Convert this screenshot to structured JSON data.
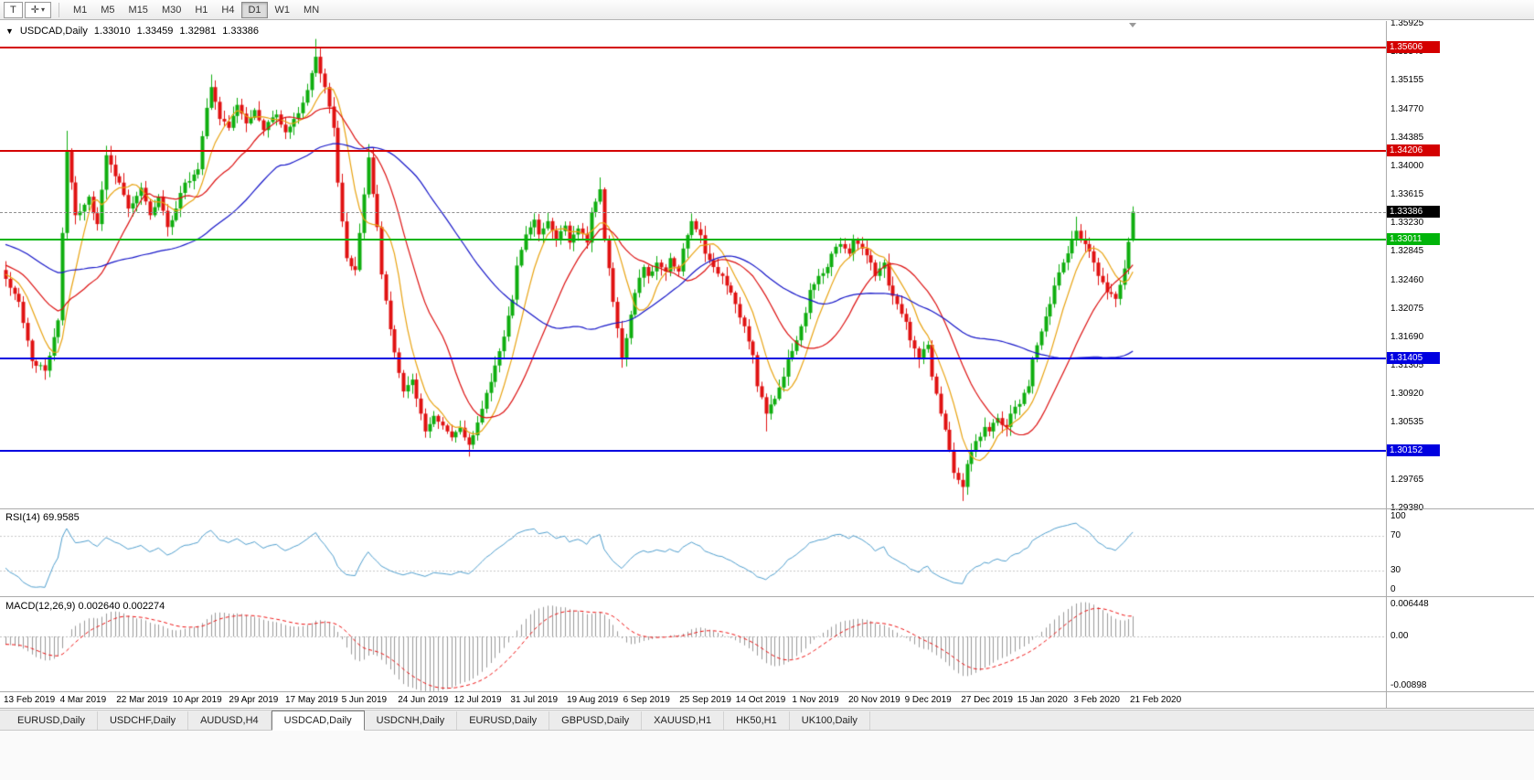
{
  "toolbar": {
    "text_tool_label": "T",
    "cursor_tool_label": "✛",
    "cursor_dropdown_icon": "▾",
    "timeframes": [
      "M1",
      "M5",
      "M15",
      "M30",
      "H1",
      "H4",
      "D1",
      "W1",
      "MN"
    ],
    "active_timeframe": "D1"
  },
  "chart_header": {
    "collapse_icon": "▼",
    "symbol": "USDCAD,Daily",
    "open": "1.33010",
    "high": "1.33459",
    "low": "1.32981",
    "close": "1.33386"
  },
  "price_axis_labels": [
    "1.35925",
    "1.35540",
    "1.35155",
    "1.34770",
    "1.34385",
    "1.34000",
    "1.33615",
    "1.33230",
    "1.32845",
    "1.32460",
    "1.32075",
    "1.31690",
    "1.31305",
    "1.30920",
    "1.30535",
    "1.30150",
    "1.29765",
    "1.29380"
  ],
  "price_markers": [
    {
      "name": "resistance-upper",
      "text": "1.35606",
      "price": 1.35606,
      "color": "#d40000",
      "line": "solid"
    },
    {
      "name": "resistance-lower",
      "text": "1.34206",
      "price": 1.34206,
      "color": "#d40000",
      "line": "solid"
    },
    {
      "name": "current-price",
      "text": "1.33386",
      "price": 1.33386,
      "color": "#000000",
      "line": "dashed"
    },
    {
      "name": "pivot-green",
      "text": "1.33011",
      "price": 1.33011,
      "color": "#00b40a",
      "line": "solid"
    },
    {
      "name": "support-upper",
      "text": "1.31405",
      "price": 1.31405,
      "color": "#0000e0",
      "line": "solid"
    },
    {
      "name": "support-lower",
      "text": "1.30152",
      "price": 1.30152,
      "color": "#0000e0",
      "line": "solid"
    }
  ],
  "rsi_panel": {
    "label": "RSI(14) 69.9585",
    "axis_labels": [
      "100",
      "70",
      "30",
      "0"
    ],
    "levels": [
      70,
      30
    ]
  },
  "macd_panel": {
    "label": "MACD(12,26,9) 0.002640 0.002274",
    "axis_top": "0.006448",
    "axis_zero": "0.00",
    "axis_bottom": "-0.00898"
  },
  "date_axis": [
    "13 Feb 2019",
    "4 Mar 2019",
    "22 Mar 2019",
    "10 Apr 2019",
    "29 Apr 2019",
    "17 May 2019",
    "5 Jun 2019",
    "24 Jun 2019",
    "12 Jul 2019",
    "31 Jul 2019",
    "19 Aug 2019",
    "6 Sep 2019",
    "25 Sep 2019",
    "14 Oct 2019",
    "1 Nov 2019",
    "20 Nov 2019",
    "9 Dec 2019",
    "27 Dec 2019",
    "15 Jan 2020",
    "3 Feb 2020",
    "21 Feb 2020"
  ],
  "tabs": [
    "EURUSD,Daily",
    "USDCHF,Daily",
    "AUDUSD,H4",
    "USDCAD,Daily",
    "USDCNH,Daily",
    "EURUSD,Daily",
    "GBPUSD,Daily",
    "XAUUSD,H1",
    "HK50,H1",
    "UK100,Daily"
  ],
  "active_tab_index": 3,
  "colors": {
    "candle_up": "#0fae0f",
    "candle_down": "#e01212",
    "level_red": "#d40000",
    "level_green": "#00b40a",
    "level_blue": "#0000e0",
    "rsi_line": "#4f9ecd",
    "macd_hist": "#9a9a9a",
    "macd_signal": "#ee1111",
    "bid_line": "#909090"
  },
  "chart_data": {
    "type": "candlestick",
    "symbol": "USDCAD",
    "timeframe": "Daily",
    "last_candle": {
      "open": 1.3301,
      "high": 1.33459,
      "low": 1.32981,
      "close": 1.33386
    },
    "price_range": {
      "top": 1.3595,
      "bottom": 1.2938
    },
    "candle_count": 259,
    "horizontal_levels": [
      1.35606,
      1.34206,
      1.33011,
      1.31405,
      1.30152
    ],
    "moving_averages": [
      {
        "name": "fast",
        "window": 8,
        "color": "#e8a312"
      },
      {
        "name": "medium",
        "window": 20,
        "color": "#dc1010"
      },
      {
        "name": "slow",
        "window": 50,
        "color": "#1616c8"
      }
    ],
    "rsi": {
      "period": 14,
      "value": 69.9585
    },
    "macd": {
      "fast": 12,
      "slow": 26,
      "signal": 9,
      "value": 0.00264,
      "signal_value": 0.002274,
      "scale_top": 0.006448,
      "scale_bottom": -0.00898
    },
    "close_anchors": [
      [
        0,
        1.3248
      ],
      [
        1,
        1.3236
      ],
      [
        3,
        1.3217
      ],
      [
        6,
        1.3137
      ],
      [
        9,
        1.3124
      ],
      [
        12,
        1.3192
      ],
      [
        13,
        1.331
      ],
      [
        14,
        1.3421
      ],
      [
        16,
        1.3334
      ],
      [
        19,
        1.3359
      ],
      [
        21,
        1.3322
      ],
      [
        23,
        1.3415
      ],
      [
        26,
        1.3378
      ],
      [
        28,
        1.3343
      ],
      [
        31,
        1.3371
      ],
      [
        33,
        1.3334
      ],
      [
        35,
        1.3359
      ],
      [
        37,
        1.3318
      ],
      [
        39,
        1.3343
      ],
      [
        41,
        1.3378
      ],
      [
        44,
        1.3396
      ],
      [
        46,
        1.3479
      ],
      [
        47,
        1.3507
      ],
      [
        49,
        1.3464
      ],
      [
        51,
        1.3452
      ],
      [
        53,
        1.3483
      ],
      [
        55,
        1.3458
      ],
      [
        57,
        1.3476
      ],
      [
        59,
        1.3449
      ],
      [
        62,
        1.347
      ],
      [
        64,
        1.3446
      ],
      [
        66,
        1.3464
      ],
      [
        68,
        1.3486
      ],
      [
        70,
        1.3526
      ],
      [
        71,
        1.3548
      ],
      [
        73,
        1.3507
      ],
      [
        75,
        1.3452
      ],
      [
        76,
        1.3378
      ],
      [
        78,
        1.3276
      ],
      [
        80,
        1.326
      ],
      [
        81,
        1.331
      ],
      [
        83,
        1.3412
      ],
      [
        85,
        1.3318
      ],
      [
        86,
        1.3254
      ],
      [
        88,
        1.318
      ],
      [
        90,
        1.3121
      ],
      [
        91,
        1.3096
      ],
      [
        93,
        1.3112
      ],
      [
        95,
        1.3066
      ],
      [
        96,
        1.3042
      ],
      [
        98,
        1.3063
      ],
      [
        100,
        1.305
      ],
      [
        102,
        1.3034
      ],
      [
        104,
        1.3047
      ],
      [
        106,
        1.3024
      ],
      [
        108,
        1.3054
      ],
      [
        110,
        1.3094
      ],
      [
        112,
        1.3131
      ],
      [
        114,
        1.317
      ],
      [
        116,
        1.322
      ],
      [
        117,
        1.3266
      ],
      [
        119,
        1.3308
      ],
      [
        121,
        1.3328
      ],
      [
        122,
        1.3308
      ],
      [
        124,
        1.3326
      ],
      [
        126,
        1.3301
      ],
      [
        128,
        1.332
      ],
      [
        129,
        1.3297
      ],
      [
        131,
        1.3316
      ],
      [
        133,
        1.3297
      ],
      [
        134,
        1.3338
      ],
      [
        136,
        1.3369
      ],
      [
        137,
        1.3301
      ],
      [
        139,
        1.3217
      ],
      [
        141,
        1.314
      ],
      [
        142,
        1.3168
      ],
      [
        144,
        1.3229
      ],
      [
        146,
        1.3264
      ],
      [
        147,
        1.3252
      ],
      [
        149,
        1.327
      ],
      [
        151,
        1.3258
      ],
      [
        152,
        1.3276
      ],
      [
        154,
        1.3258
      ],
      [
        155,
        1.3289
      ],
      [
        157,
        1.3326
      ],
      [
        159,
        1.3307
      ],
      [
        160,
        1.3282
      ],
      [
        162,
        1.3264
      ],
      [
        164,
        1.3252
      ],
      [
        165,
        1.3239
      ],
      [
        167,
        1.3214
      ],
      [
        169,
        1.3184
      ],
      [
        171,
        1.3145
      ],
      [
        172,
        1.3103
      ],
      [
        174,
        1.3066
      ],
      [
        176,
        1.3086
      ],
      [
        178,
        1.3116
      ],
      [
        179,
        1.314
      ],
      [
        181,
        1.3165
      ],
      [
        183,
        1.3202
      ],
      [
        184,
        1.3233
      ],
      [
        186,
        1.3252
      ],
      [
        188,
        1.3264
      ],
      [
        189,
        1.3282
      ],
      [
        191,
        1.3295
      ],
      [
        193,
        1.3282
      ],
      [
        194,
        1.3301
      ],
      [
        196,
        1.3289
      ],
      [
        198,
        1.327
      ],
      [
        199,
        1.3252
      ],
      [
        201,
        1.327
      ],
      [
        202,
        1.3239
      ],
      [
        204,
        1.3214
      ],
      [
        206,
        1.319
      ],
      [
        207,
        1.3165
      ],
      [
        209,
        1.314
      ],
      [
        211,
        1.3159
      ],
      [
        212,
        1.3116
      ],
      [
        214,
        1.3066
      ],
      [
        216,
        1.3017
      ],
      [
        217,
        1.2986
      ],
      [
        219,
        1.2967
      ],
      [
        220,
        1.2998
      ],
      [
        222,
        1.3029
      ],
      [
        224,
        1.3048
      ],
      [
        225,
        1.3042
      ],
      [
        227,
        1.306
      ],
      [
        229,
        1.3048
      ],
      [
        230,
        1.3066
      ],
      [
        232,
        1.3079
      ],
      [
        234,
        1.3103
      ],
      [
        235,
        1.314
      ],
      [
        237,
        1.3177
      ],
      [
        239,
        1.3214
      ],
      [
        240,
        1.3239
      ],
      [
        242,
        1.327
      ],
      [
        244,
        1.3301
      ],
      [
        245,
        1.3313
      ],
      [
        247,
        1.3295
      ],
      [
        249,
        1.327
      ],
      [
        250,
        1.3252
      ],
      [
        252,
        1.323
      ],
      [
        254,
        1.3221
      ],
      [
        255,
        1.324
      ],
      [
        256,
        1.3262
      ],
      [
        257,
        1.3298
      ],
      [
        258,
        1.33386
      ]
    ],
    "overrides": {
      "14": {
        "h": 1.3448
      },
      "47": {
        "h": 1.3524
      },
      "71": {
        "h": 1.3572
      },
      "83": {
        "h": 1.343
      },
      "106": {
        "l": 1.3008
      },
      "136": {
        "h": 1.3385
      },
      "141": {
        "l": 1.3128
      },
      "174": {
        "l": 1.3042
      },
      "219": {
        "l": 1.2948
      },
      "245": {
        "h": 1.3332
      },
      "258": {
        "o": 1.3301,
        "h": 1.33459,
        "l": 1.32981,
        "c": 1.33386
      }
    },
    "render": {
      "seed": 42,
      "close_noise": 0.0008,
      "wick_noise": 0.0011,
      "warmup": 60,
      "warm_from": 1.336,
      "warm_to": 1.325
    }
  }
}
